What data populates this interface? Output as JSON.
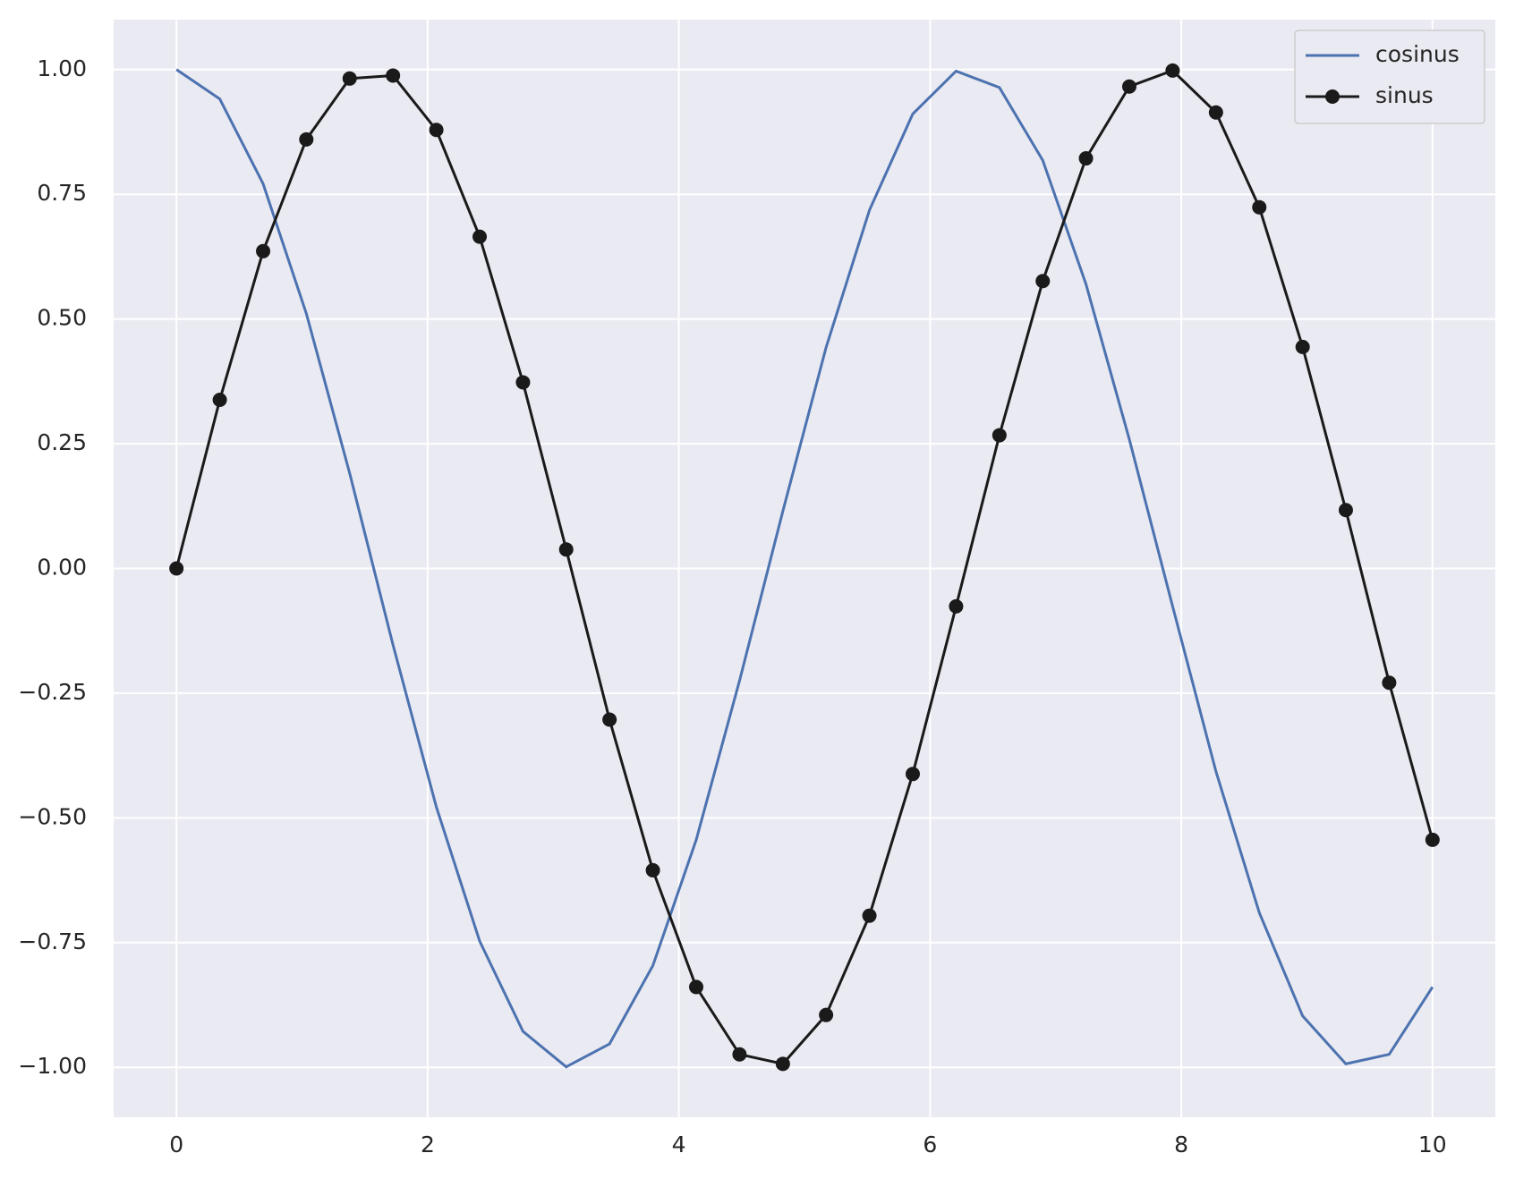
{
  "chart_data": {
    "type": "line",
    "x": [
      0,
      0.345,
      0.69,
      1.034,
      1.379,
      1.724,
      2.069,
      2.414,
      2.759,
      3.103,
      3.448,
      3.793,
      4.138,
      4.483,
      4.828,
      5.172,
      5.517,
      5.862,
      6.207,
      6.552,
      6.897,
      7.241,
      7.586,
      7.931,
      8.276,
      8.621,
      8.966,
      9.31,
      9.655,
      10
    ],
    "series": [
      {
        "name": "cosinus",
        "color": "#4c72b0",
        "marker": false,
        "values": [
          1,
          0.941,
          0.771,
          0.511,
          0.191,
          -0.153,
          -0.478,
          -0.747,
          -0.928,
          -0.999,
          -0.953,
          -0.796,
          -0.544,
          -0.225,
          0.115,
          0.443,
          0.718,
          0.911,
          0.997,
          0.964,
          0.818,
          0.57,
          0.259,
          -0.076,
          -0.407,
          -0.69,
          -0.897,
          -0.993,
          -0.974,
          -0.839
        ]
      },
      {
        "name": "sinus",
        "color": "#1a1a1a",
        "marker": true,
        "values": [
          0,
          0.338,
          0.636,
          0.86,
          0.982,
          0.988,
          0.879,
          0.665,
          0.373,
          0.038,
          -0.303,
          -0.605,
          -0.839,
          -0.974,
          -0.993,
          -0.895,
          -0.696,
          -0.412,
          -0.076,
          0.267,
          0.576,
          0.822,
          0.966,
          0.998,
          0.914,
          0.724,
          0.444,
          0.117,
          -0.229,
          -0.544
        ]
      }
    ],
    "xlim": [
      -0.5,
      10.5
    ],
    "ylim": [
      -1.1,
      1.1
    ],
    "xticks": [
      0,
      2,
      4,
      6,
      8,
      10
    ],
    "yticks": [
      {
        "value": -1,
        "label": "−1.00"
      },
      {
        "value": -0.75,
        "label": "−0.75"
      },
      {
        "value": -0.5,
        "label": "−0.50"
      },
      {
        "value": -0.25,
        "label": "−0.25"
      },
      {
        "value": 0,
        "label": "0.00"
      },
      {
        "value": 0.25,
        "label": "0.25"
      },
      {
        "value": 0.5,
        "label": "0.50"
      },
      {
        "value": 0.75,
        "label": "0.75"
      },
      {
        "value": 1,
        "label": "1.00"
      }
    ],
    "grid": true,
    "legend": "upper right"
  }
}
